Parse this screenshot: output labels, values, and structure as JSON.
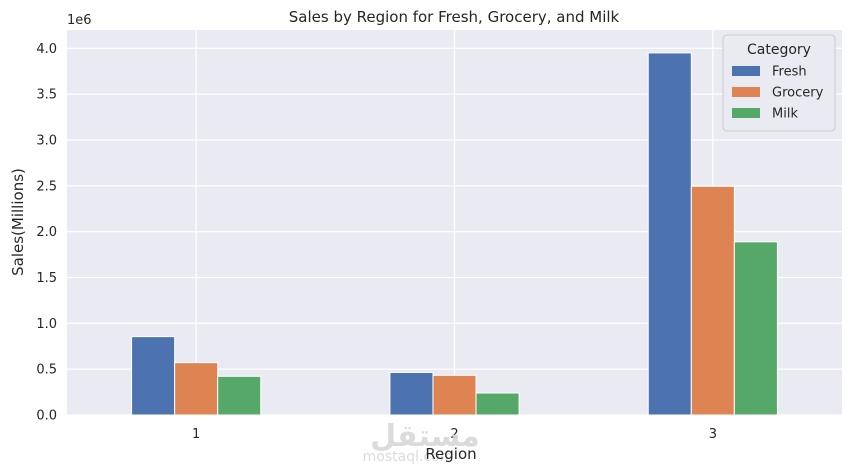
{
  "chart_data": {
    "type": "bar",
    "title": "Sales by Region for Fresh, Grocery, and Milk",
    "xlabel": "Region",
    "ylabel": "Sales(Millions)",
    "y_offset_label": "1e6",
    "categories": [
      "1",
      "2",
      "3"
    ],
    "series": [
      {
        "name": "Fresh",
        "color": "#4c72b0",
        "values": [
          0.855,
          0.464,
          3.95
        ]
      },
      {
        "name": "Grocery",
        "color": "#dd8452",
        "values": [
          0.571,
          0.433,
          2.495
        ]
      },
      {
        "name": "Milk",
        "color": "#55a868",
        "values": [
          0.422,
          0.24,
          1.889
        ]
      }
    ],
    "ylim": [
      0,
      4.2
    ],
    "yticks": [
      "0.0",
      "0.5",
      "1.0",
      "1.5",
      "2.0",
      "2.5",
      "3.0",
      "3.5",
      "4.0"
    ],
    "grid": true,
    "legend": {
      "title": "Category",
      "placement": "top-right"
    },
    "background": "#eaeaf2"
  },
  "watermark": {
    "arabic": "مستقل",
    "latin": "mostaql.com"
  }
}
